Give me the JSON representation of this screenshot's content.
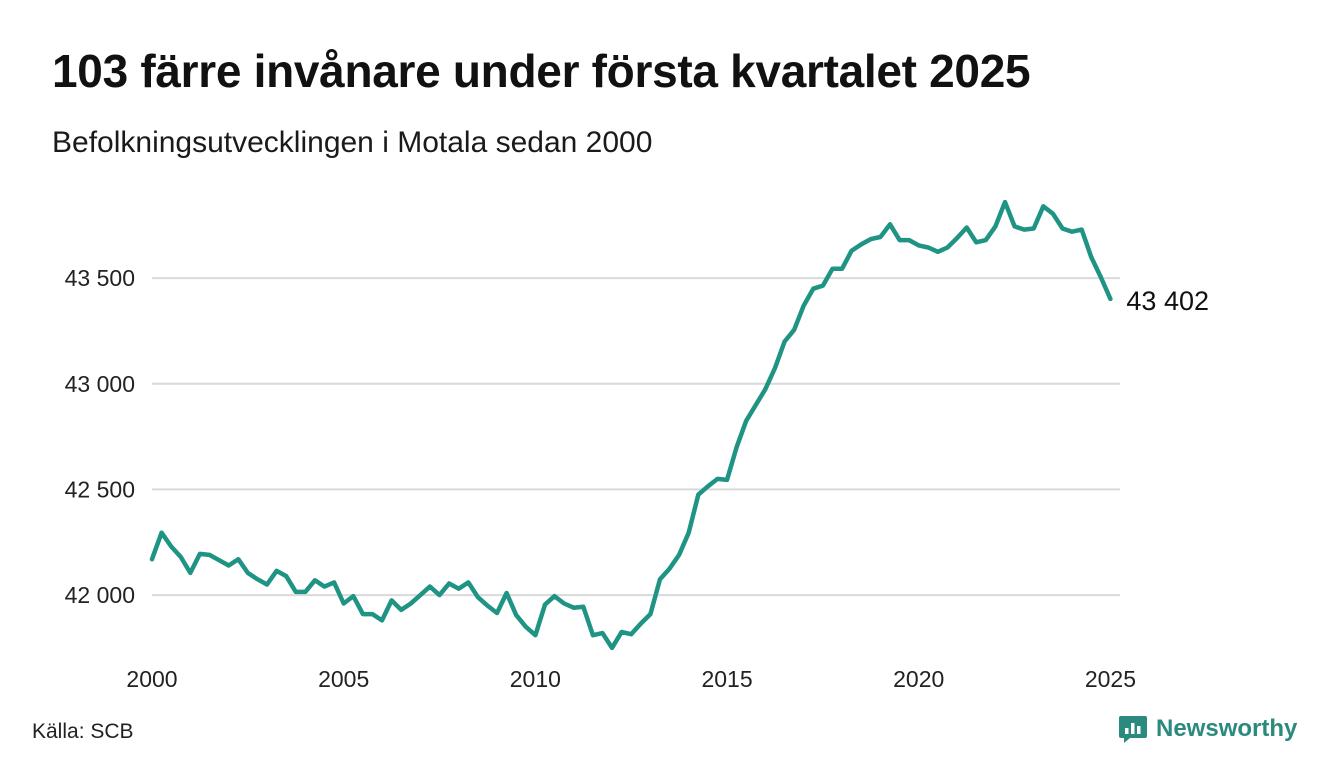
{
  "header": {
    "title": "103 färre invånare under första kvartalet 2025",
    "subtitle": "Befolkningsutvecklingen i Motala sedan 2000"
  },
  "footer": {
    "source": "Källa: SCB",
    "brand": "Newsworthy",
    "brand_icon": "bar-chart-icon"
  },
  "colors": {
    "line": "#1f9484",
    "grid": "#d9d9d9",
    "brand": "#2b8a7e"
  },
  "chart_data": {
    "type": "line",
    "title": "103 färre invånare under första kvartalet 2025",
    "subtitle": "Befolkningsutvecklingen i Motala sedan 2000",
    "xlabel": "",
    "ylabel": "",
    "grid": true,
    "xlim": [
      2000.0,
      2025.25
    ],
    "ylim": [
      41740,
      43870
    ],
    "x_ticks": [
      2000,
      2005,
      2010,
      2015,
      2020,
      2025
    ],
    "x_tick_labels": [
      "2000",
      "2005",
      "2010",
      "2015",
      "2020",
      "2025"
    ],
    "y_ticks": [
      42000,
      42500,
      43000,
      43500
    ],
    "y_tick_labels": [
      "42 000",
      "42 500",
      "43 000",
      "43 500"
    ],
    "end_label": "43 402",
    "series": [
      {
        "values": [
          [
            2000.0,
            42170
          ],
          [
            2000.25,
            42295
          ],
          [
            2000.5,
            42230
          ],
          [
            2000.75,
            42180
          ],
          [
            2001.0,
            42105
          ],
          [
            2001.25,
            42195
          ],
          [
            2001.5,
            42190
          ],
          [
            2001.75,
            42165
          ],
          [
            2002.0,
            42140
          ],
          [
            2002.25,
            42170
          ],
          [
            2002.5,
            42105
          ],
          [
            2002.75,
            42075
          ],
          [
            2003.0,
            42050
          ],
          [
            2003.25,
            42115
          ],
          [
            2003.5,
            42090
          ],
          [
            2003.75,
            42015
          ],
          [
            2004.0,
            42015
          ],
          [
            2004.25,
            42070
          ],
          [
            2004.5,
            42040
          ],
          [
            2004.75,
            42060
          ],
          [
            2005.0,
            41960
          ],
          [
            2005.25,
            41995
          ],
          [
            2005.5,
            41910
          ],
          [
            2005.75,
            41910
          ],
          [
            2006.0,
            41880
          ],
          [
            2006.25,
            41975
          ],
          [
            2006.5,
            41930
          ],
          [
            2006.75,
            41960
          ],
          [
            2007.0,
            42000
          ],
          [
            2007.25,
            42040
          ],
          [
            2007.5,
            42000
          ],
          [
            2007.75,
            42055
          ],
          [
            2008.0,
            42030
          ],
          [
            2008.25,
            42060
          ],
          [
            2008.5,
            41990
          ],
          [
            2008.75,
            41950
          ],
          [
            2009.0,
            41915
          ],
          [
            2009.25,
            42010
          ],
          [
            2009.5,
            41905
          ],
          [
            2009.75,
            41850
          ],
          [
            2010.0,
            41810
          ],
          [
            2010.25,
            41955
          ],
          [
            2010.5,
            41995
          ],
          [
            2010.75,
            41960
          ],
          [
            2011.0,
            41940
          ],
          [
            2011.25,
            41945
          ],
          [
            2011.5,
            41810
          ],
          [
            2011.75,
            41820
          ],
          [
            2012.0,
            41750
          ],
          [
            2012.25,
            41825
          ],
          [
            2012.5,
            41815
          ],
          [
            2012.75,
            41865
          ],
          [
            2013.0,
            41910
          ],
          [
            2013.25,
            42075
          ],
          [
            2013.5,
            42125
          ],
          [
            2013.75,
            42190
          ],
          [
            2014.0,
            42295
          ],
          [
            2014.25,
            42475
          ],
          [
            2014.5,
            42515
          ],
          [
            2014.75,
            42550
          ],
          [
            2015.0,
            42545
          ],
          [
            2015.25,
            42700
          ],
          [
            2015.5,
            42825
          ],
          [
            2015.75,
            42900
          ],
          [
            2016.0,
            42975
          ],
          [
            2016.25,
            43075
          ],
          [
            2016.5,
            43200
          ],
          [
            2016.75,
            43255
          ],
          [
            2017.0,
            43370
          ],
          [
            2017.25,
            43450
          ],
          [
            2017.5,
            43465
          ],
          [
            2017.75,
            43545
          ],
          [
            2018.0,
            43545
          ],
          [
            2018.25,
            43630
          ],
          [
            2018.5,
            43660
          ],
          [
            2018.75,
            43685
          ],
          [
            2019.0,
            43695
          ],
          [
            2019.25,
            43755
          ],
          [
            2019.5,
            43680
          ],
          [
            2019.75,
            43680
          ],
          [
            2020.0,
            43655
          ],
          [
            2020.25,
            43645
          ],
          [
            2020.5,
            43625
          ],
          [
            2020.75,
            43645
          ],
          [
            2021.0,
            43690
          ],
          [
            2021.25,
            43740
          ],
          [
            2021.5,
            43670
          ],
          [
            2021.75,
            43680
          ],
          [
            2022.0,
            43745
          ],
          [
            2022.25,
            43860
          ],
          [
            2022.5,
            43745
          ],
          [
            2022.75,
            43730
          ],
          [
            2023.0,
            43735
          ],
          [
            2023.25,
            43840
          ],
          [
            2023.5,
            43805
          ],
          [
            2023.75,
            43735
          ],
          [
            2024.0,
            43720
          ],
          [
            2024.25,
            43730
          ],
          [
            2024.5,
            43600
          ],
          [
            2024.75,
            43505
          ],
          [
            2025.0,
            43402
          ]
        ]
      }
    ]
  }
}
